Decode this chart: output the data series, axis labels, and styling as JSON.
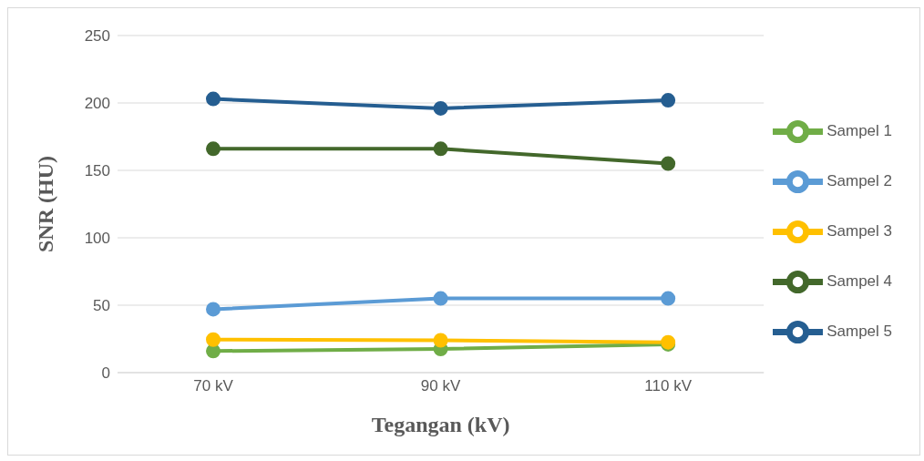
{
  "chart_data": {
    "type": "line",
    "xlabel": "Tegangan (kV)",
    "ylabel": "SNR (HU)",
    "categories": [
      "70 kV",
      "90 kV",
      "110 kV"
    ],
    "series": [
      {
        "name": "Sampel 1",
        "color": "#70ad47",
        "values": [
          16,
          17.5,
          21
        ]
      },
      {
        "name": "Sampel 2",
        "color": "#5b9bd5",
        "values": [
          47,
          55,
          55
        ]
      },
      {
        "name": "Sampel 3",
        "color": "#ffc000",
        "values": [
          24.5,
          24,
          22.5
        ]
      },
      {
        "name": "Sampel 4",
        "color": "#43682b",
        "values": [
          166,
          166,
          155
        ]
      },
      {
        "name": "Sampel 5",
        "color": "#255e91",
        "values": [
          203,
          196,
          202
        ]
      }
    ],
    "ylim": [
      0,
      250
    ],
    "yticks": [
      0,
      50,
      100,
      150,
      200,
      250
    ],
    "grid": "y",
    "legend": "right",
    "marker": "circle",
    "line_style": "solid"
  }
}
